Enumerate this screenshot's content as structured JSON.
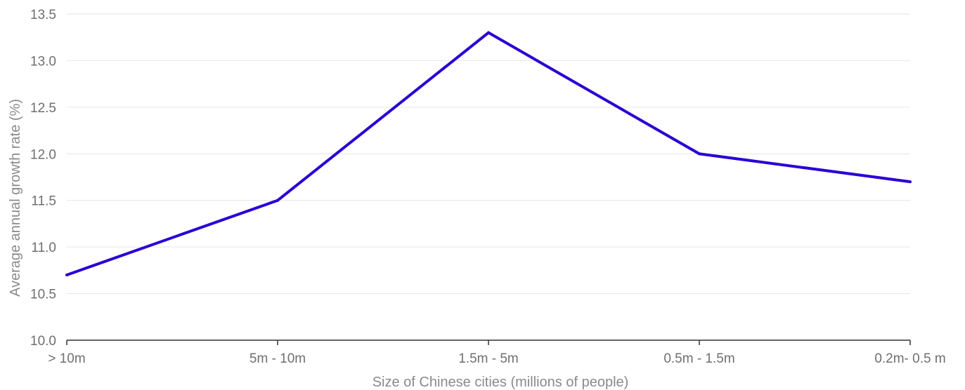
{
  "chart_data": {
    "type": "line",
    "title": "",
    "xlabel": "Size of Chinese cities (millions of people)",
    "ylabel": "Average annual growth rate (%)",
    "categories": [
      "> 10m",
      "5m - 10m",
      "1.5m - 5m",
      "0.5m - 1.5m",
      "0.2m- 0.5 m"
    ],
    "series": [
      {
        "values": [
          10.7,
          11.5,
          13.3,
          12.0,
          11.7
        ],
        "color": "#2a00d4"
      }
    ],
    "ylim": [
      10.0,
      13.5
    ],
    "yticks": [
      "10.0",
      "10.5",
      "11.0",
      "11.5",
      "12.0",
      "12.5",
      "13.0",
      "13.5"
    ],
    "grid": true,
    "legend": "none",
    "colors": {
      "line": "#2a00d4",
      "grid": "#e6e6e6",
      "axis": "#333333",
      "text": "#6f6f6f"
    }
  }
}
